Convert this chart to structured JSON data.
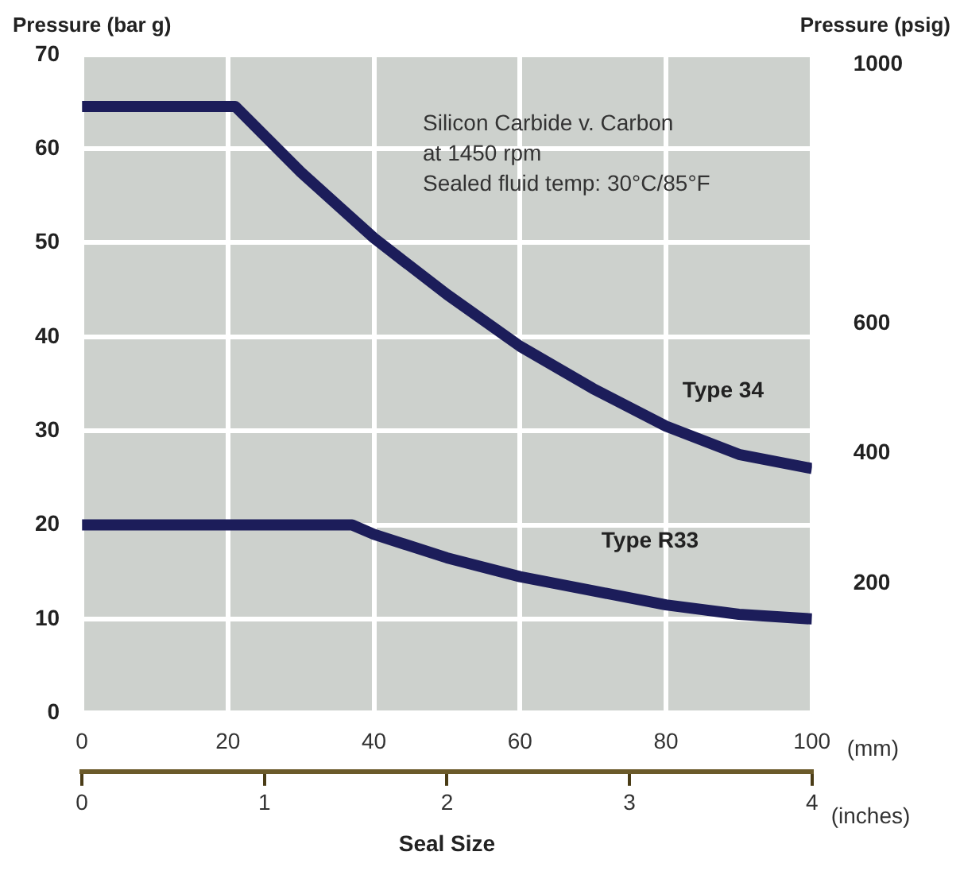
{
  "chart_data": {
    "type": "line",
    "ylabel": "Pressure (bar g)",
    "y2label": "Pressure (psig)",
    "xlabel": "Seal Size",
    "annotations": [
      "Silicon Carbide v. Carbon",
      "at 1450 rpm",
      "Sealed fluid temp: 30°C/85°F",
      "(mm)",
      "(inches)"
    ],
    "xlim": [
      0,
      100
    ],
    "xticks": [
      0,
      20,
      40,
      60,
      80,
      100
    ],
    "x2lim": [
      0,
      4
    ],
    "x2ticks": [
      0,
      1,
      2,
      3,
      4
    ],
    "ylim": [
      0,
      70
    ],
    "yticks": [
      0,
      10,
      20,
      30,
      40,
      50,
      60,
      70
    ],
    "y2lim": [
      0,
      1015
    ],
    "y2ticks": [
      200,
      400,
      600,
      1000
    ],
    "grid": true,
    "legend": false,
    "marker": "none",
    "line_style": "solid",
    "series": [
      {
        "name": "Type 34",
        "color": "#1c1d5a",
        "x": [
          0,
          21,
          30,
          40,
          50,
          60,
          70,
          80,
          90,
          100
        ],
        "values": [
          64.5,
          64.5,
          57.5,
          50.5,
          44.5,
          39,
          34.5,
          30.5,
          27.5,
          26
        ]
      },
      {
        "name": "Type R33",
        "color": "#1c1d5a",
        "x": [
          0,
          37,
          40,
          50,
          60,
          70,
          80,
          90,
          100
        ],
        "values": [
          20,
          20,
          19,
          16.5,
          14.5,
          13,
          11.5,
          10.5,
          10
        ]
      }
    ]
  }
}
